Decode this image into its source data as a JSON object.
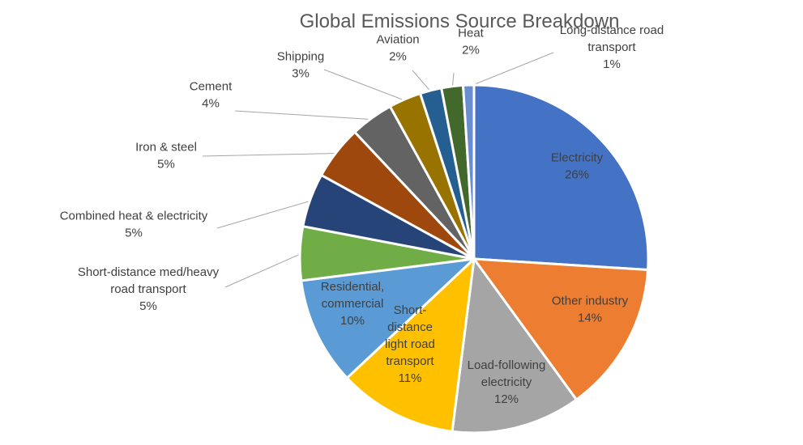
{
  "chart_data": {
    "type": "pie",
    "title": "Global Emissions Source Breakdown",
    "slices": [
      {
        "name": "Electricity",
        "label_lines": [
          "Electricity"
        ],
        "percent": "26%",
        "value": 26,
        "color": "#4472C4",
        "label_pos": "inside"
      },
      {
        "name": "Other industry",
        "label_lines": [
          "Other industry"
        ],
        "percent": "14%",
        "value": 14,
        "color": "#ED7D31",
        "label_pos": "inside"
      },
      {
        "name": "Load-following electricity",
        "label_lines": [
          "Load-following",
          "electricity"
        ],
        "percent": "12%",
        "value": 12,
        "color": "#A5A5A5",
        "label_pos": "inside"
      },
      {
        "name": "Short-distance light road transport",
        "label_lines": [
          "Short-",
          "distance",
          "light road",
          "transport"
        ],
        "percent": "11%",
        "value": 11,
        "color": "#FFC000",
        "label_pos": "inside"
      },
      {
        "name": "Residential, commercial",
        "label_lines": [
          "Residential,",
          "commercial"
        ],
        "percent": "10%",
        "value": 10,
        "color": "#5B9BD5",
        "label_pos": "inside"
      },
      {
        "name": "Short-distance med/heavy road transport",
        "label_lines": [
          "Short-distance med/heavy",
          "road transport"
        ],
        "percent": "5%",
        "value": 5,
        "color": "#70AD47",
        "label_pos": "outside"
      },
      {
        "name": "Combined heat & electricity",
        "label_lines": [
          "Combined heat & electricity"
        ],
        "percent": "5%",
        "value": 5,
        "color": "#264478",
        "label_pos": "outside"
      },
      {
        "name": "Iron & steel",
        "label_lines": [
          "Iron & steel"
        ],
        "percent": "5%",
        "value": 5,
        "color": "#9E480E",
        "label_pos": "outside"
      },
      {
        "name": "Cement",
        "label_lines": [
          "Cement"
        ],
        "percent": "4%",
        "value": 4,
        "color": "#636363",
        "label_pos": "outside"
      },
      {
        "name": "Shipping",
        "label_lines": [
          "Shipping"
        ],
        "percent": "3%",
        "value": 3,
        "color": "#997300",
        "label_pos": "outside"
      },
      {
        "name": "Aviation",
        "label_lines": [
          "Aviation"
        ],
        "percent": "2%",
        "value": 2,
        "color": "#255E91",
        "label_pos": "outside"
      },
      {
        "name": "Heat",
        "label_lines": [
          "Heat"
        ],
        "percent": "2%",
        "value": 2,
        "color": "#43682B",
        "label_pos": "outside"
      },
      {
        "name": "Long-distance road transport",
        "label_lines": [
          "Long-distance road",
          "transport"
        ],
        "percent": "1%",
        "value": 1,
        "color": "#698ED0",
        "label_pos": "outside"
      }
    ],
    "start_position": "top",
    "direction": "clockwise",
    "legend": "none",
    "data_labels": "category name and percentage",
    "leader_lines": true
  }
}
